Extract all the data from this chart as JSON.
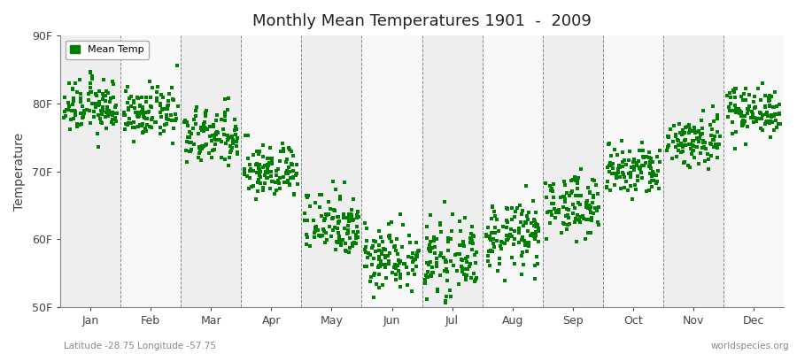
{
  "title": "Monthly Mean Temperatures 1901  -  2009",
  "ylabel": "Temperature",
  "legend_label": "Mean Temp",
  "subtitle_left": "Latitude -28.75 Longitude -57.75",
  "subtitle_right": "worldspecies.org",
  "ylim": [
    50,
    90
  ],
  "yticks": [
    50,
    60,
    70,
    80,
    90
  ],
  "ytick_labels": [
    "50F",
    "60F",
    "70F",
    "80F",
    "90F"
  ],
  "months": [
    "Jan",
    "Feb",
    "Mar",
    "Apr",
    "May",
    "Jun",
    "Jul",
    "Aug",
    "Sep",
    "Oct",
    "Nov",
    "Dec"
  ],
  "marker_color": "#008000",
  "marker_size": 3,
  "background_color": "#ffffff",
  "plot_bg_color": "#ffffff",
  "band_color_odd": "#eeeeee",
  "band_color_even": "#f8f8f8",
  "grid_color": "#888888",
  "monthly_means": [
    79.5,
    78.5,
    75.0,
    70.0,
    62.5,
    57.5,
    57.0,
    60.5,
    65.0,
    70.0,
    74.5,
    79.0
  ],
  "monthly_stds": [
    2.0,
    1.8,
    2.2,
    2.0,
    2.5,
    2.5,
    2.5,
    2.5,
    2.2,
    2.0,
    2.0,
    1.8
  ],
  "n_years": 109
}
